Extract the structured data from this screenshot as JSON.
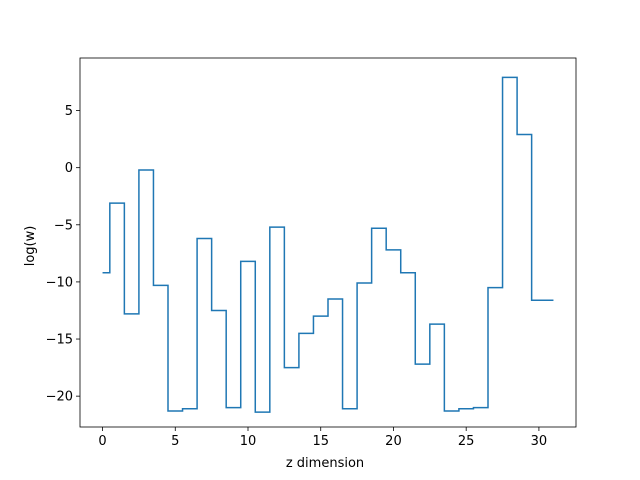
{
  "chart_data": {
    "type": "line",
    "drawstyle": "steps-mid",
    "title": "",
    "xlabel": "z dimension",
    "ylabel": "log(w)",
    "xlim": [
      -1.55,
      32.55
    ],
    "ylim": [
      -22.7,
      9.6
    ],
    "xticks": [
      0,
      5,
      10,
      15,
      20,
      25,
      30
    ],
    "yticks": [
      -20,
      -15,
      -10,
      -5,
      0,
      5
    ],
    "grid": false,
    "legend": "none",
    "series": [
      {
        "color": "#1f77b4",
        "x": [
          0,
          1,
          2,
          3,
          4,
          5,
          6,
          7,
          8,
          9,
          10,
          11,
          12,
          13,
          14,
          15,
          16,
          17,
          18,
          19,
          20,
          21,
          22,
          23,
          24,
          25,
          26,
          27,
          28,
          29,
          30,
          31
        ],
        "y": [
          -9.2,
          -3.1,
          -12.8,
          -0.2,
          -10.3,
          -21.3,
          -21.1,
          -6.2,
          -12.5,
          -21.0,
          -8.2,
          -21.4,
          -5.2,
          -17.5,
          -14.5,
          -13.0,
          -11.5,
          -21.1,
          -10.1,
          -5.3,
          -7.2,
          -9.2,
          -17.2,
          -13.7,
          -21.3,
          -21.1,
          -21.0,
          -10.5,
          7.9,
          2.9,
          -11.6,
          -11.6
        ]
      }
    ]
  }
}
